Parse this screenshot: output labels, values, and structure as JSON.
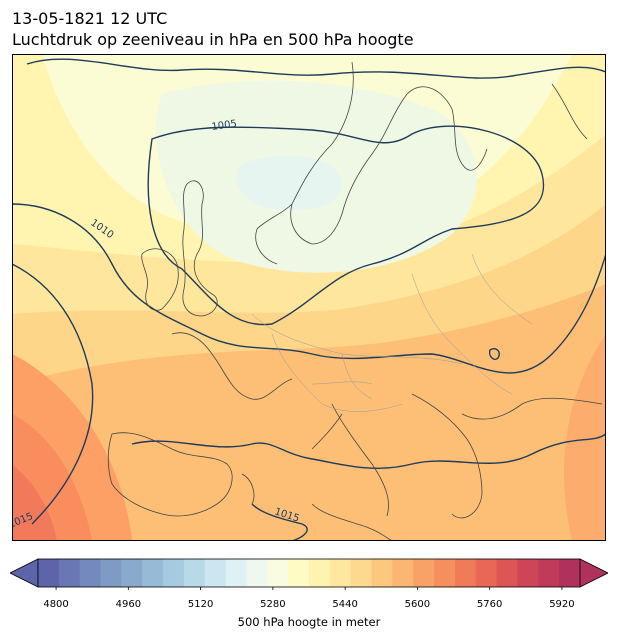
{
  "header": {
    "datetime": "13-05-1821 12 UTC",
    "subtitle": "Luchtdruk op zeeniveau in hPa en 500 hPa hoogte"
  },
  "map": {
    "region": "Europe",
    "isobar_labels": [
      "1005",
      "1010",
      "1015",
      "1015"
    ],
    "land_color": "none",
    "coast_color": "#444444",
    "isobar_color": "#1f3a5a"
  },
  "colorbar": {
    "label": "500 hPa hoogte in meter",
    "ticks": [
      "4800",
      "4960",
      "5120",
      "5280",
      "5440",
      "5600",
      "5760",
      "5920"
    ],
    "min": 4760,
    "max": 5960,
    "step": 40,
    "extend": "both",
    "colormap": "RdYlBu_r"
  }
}
